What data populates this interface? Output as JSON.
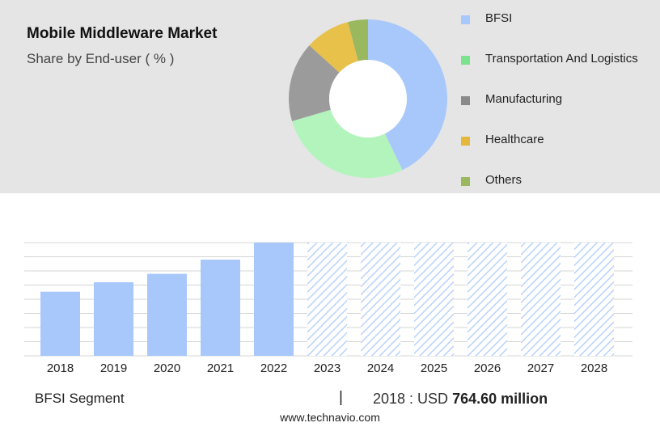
{
  "header": {
    "title": "Mobile Middleware Market",
    "subtitle": "Share by End-user ( % )"
  },
  "chart_data": [
    {
      "type": "pie",
      "variant": "donut",
      "slices": [
        {
          "label": "BFSI",
          "value": 42,
          "color": "#a8c8fb"
        },
        {
          "label": "Transportation And Logistics",
          "value": 27,
          "color": "#b3f4bd"
        },
        {
          "label": "Manufacturing",
          "value": 16,
          "color": "#9b9b9b"
        },
        {
          "label": "Healthcare",
          "value": 9,
          "color": "#e8c14b"
        },
        {
          "label": "Others",
          "value": 4,
          "color": "#9ab85e"
        }
      ],
      "legend_placement": "right",
      "legend_colors": [
        "#a8c8fb",
        "#7be28e",
        "#8a8a8a",
        "#e5b83b",
        "#9ab85e"
      ]
    },
    {
      "type": "bar",
      "categories": [
        "2018",
        "2019",
        "2020",
        "2021",
        "2022",
        "2023",
        "2024",
        "2025",
        "2026",
        "2027",
        "2028"
      ],
      "values": [
        764.6,
        877,
        978,
        1147,
        1350,
        1350,
        1350,
        1350,
        1350,
        1350,
        1350
      ],
      "forecast_from": "2023",
      "ylim": [
        0,
        1350
      ],
      "grid": true,
      "color": "#a8c8fb"
    }
  ],
  "footer": {
    "segment": "BFSI Segment",
    "separator": "|",
    "year_label": "2018 : USD",
    "value_label": "764.60 million",
    "website": "www.technavio.com"
  }
}
